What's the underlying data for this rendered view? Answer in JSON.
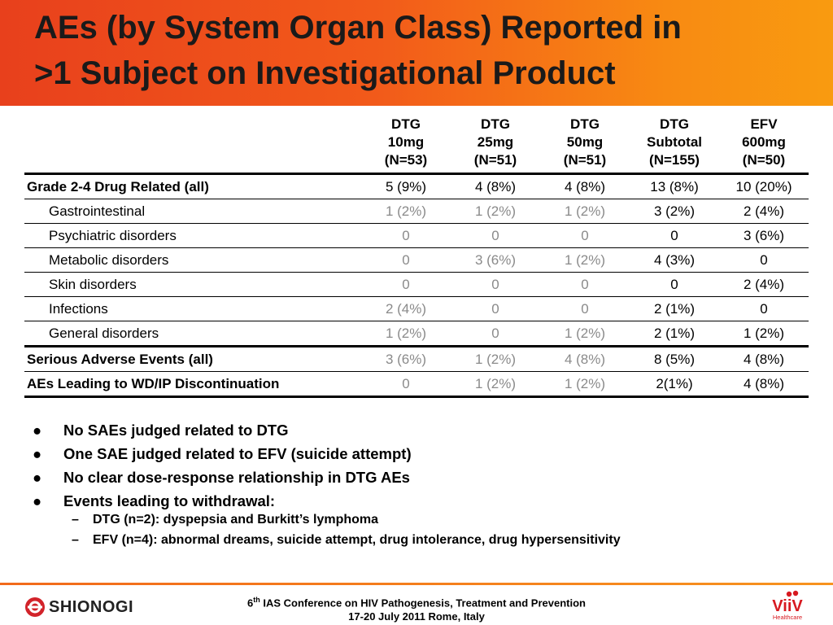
{
  "title": {
    "line1": "AEs (by System Organ Class) Reported in",
    "line2": ">1 Subject on Investigational Product"
  },
  "table": {
    "columns": [
      {
        "line1": "DTG",
        "line2": "10mg",
        "line3": "(N=53)"
      },
      {
        "line1": "DTG",
        "line2": "25mg",
        "line3": "(N=51)"
      },
      {
        "line1": "DTG",
        "line2": "50mg",
        "line3": "(N=51)"
      },
      {
        "line1": "DTG",
        "line2": "Subtotal",
        "line3": "(N=155)"
      },
      {
        "line1": "EFV",
        "line2": "600mg",
        "line3": "(N=50)"
      }
    ],
    "rows": [
      {
        "label": "Grade 2-4 Drug Related (all)",
        "values": [
          "5 (9%)",
          "4 (8%)",
          "4 (8%)",
          "13 (8%)",
          "10 (20%)"
        ]
      },
      {
        "label": "Gastrointestinal",
        "values": [
          "1 (2%)",
          "1 (2%)",
          "1 (2%)",
          "3 (2%)",
          "2 (4%)"
        ]
      },
      {
        "label": "Psychiatric disorders",
        "values": [
          "0",
          "0",
          "0",
          "0",
          "3 (6%)"
        ]
      },
      {
        "label": "Metabolic disorders",
        "values": [
          "0",
          "3 (6%)",
          "1 (2%)",
          "4 (3%)",
          "0"
        ]
      },
      {
        "label": "Skin disorders",
        "values": [
          "0",
          "0",
          "0",
          "0",
          "2 (4%)"
        ]
      },
      {
        "label": "Infections",
        "values": [
          "2 (4%)",
          "0",
          "0",
          "2 (1%)",
          "0"
        ]
      },
      {
        "label": "General disorders",
        "values": [
          "1 (2%)",
          "0",
          "1 (2%)",
          "2 (1%)",
          "1 (2%)"
        ]
      },
      {
        "label": "Serious Adverse Events (all)",
        "values": [
          "3 (6%)",
          "1 (2%)",
          "4 (8%)",
          "8 (5%)",
          "4 (8%)"
        ]
      },
      {
        "label": "AEs Leading to WD/IP Discontinuation",
        "values": [
          "0",
          "1 (2%)",
          "1 (2%)",
          "2(1%)",
          "4 (8%)"
        ]
      }
    ]
  },
  "bullets": [
    "No SAEs judged related to DTG",
    "One SAE judged related to EFV (suicide attempt)",
    "No clear dose-response relationship in DTG AEs",
    "Events leading to withdrawal:"
  ],
  "subbullets": [
    "DTG (n=2): dyspepsia and Burkitt’s lymphoma",
    "EFV (n=4): abnormal dreams, suicide attempt, drug intolerance, drug hypersensitivity"
  ],
  "bullet_glyph": "●",
  "dash_glyph": "–",
  "footer": {
    "ordinal": "6",
    "ordinal_suffix": "th",
    "conference_rest": " IAS Conference on HIV Pathogenesis, Treatment and Prevention",
    "line2": "17-20 July 2011 Rome, Italy"
  },
  "logos": {
    "left": {
      "name": "shionogi-logo",
      "text": "SHIONOGI"
    },
    "right": {
      "name": "viiv-logo",
      "text": "ViiV",
      "subtext": "Healthcare"
    }
  },
  "colors": {
    "header_start": "#e8401c",
    "header_end": "#f99b10",
    "muted_value": "#8a8a8a",
    "viiv_red": "#d71920",
    "shionogi_red": "#d2232a"
  }
}
